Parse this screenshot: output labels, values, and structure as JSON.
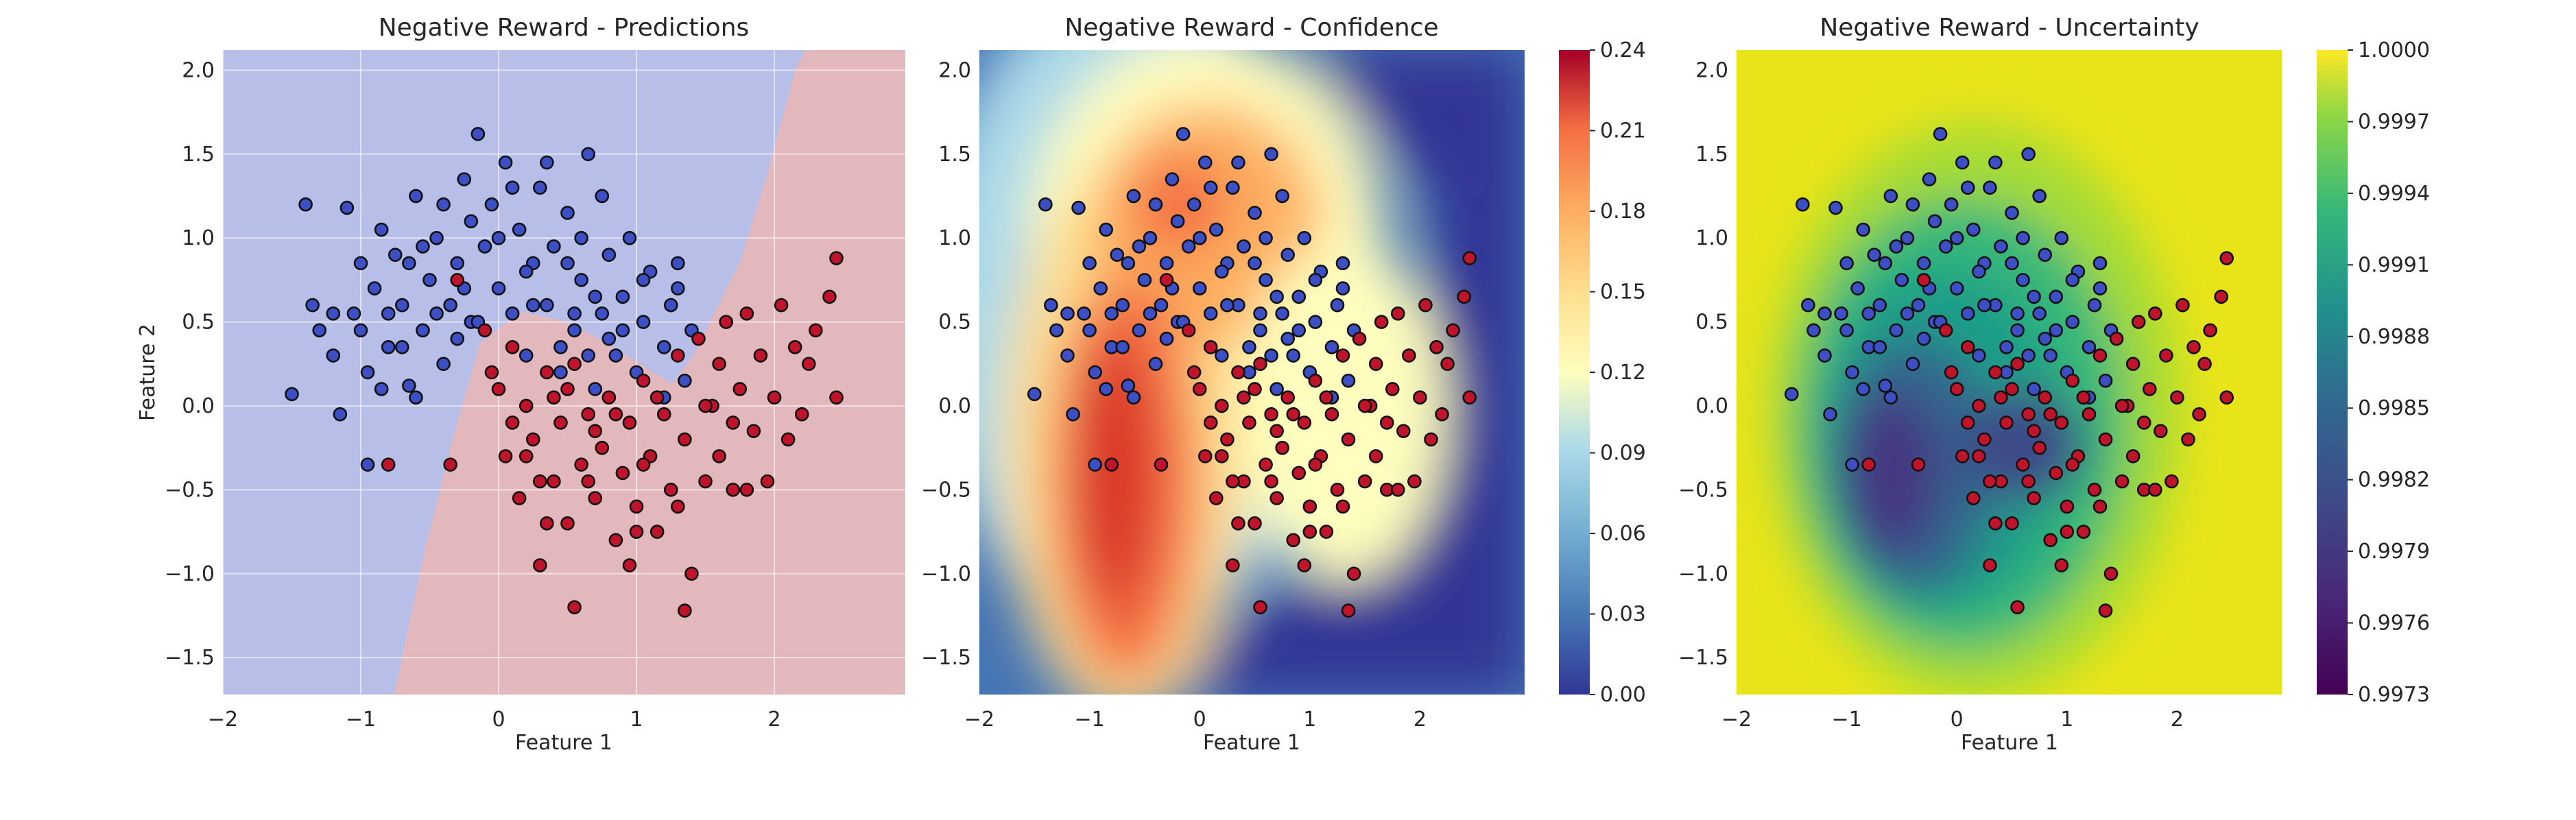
{
  "chart_data": [
    {
      "type": "scatter",
      "title": "Negative Reward - Predictions",
      "xlabel": "Feature 1",
      "ylabel": "Feature 2",
      "xlim": [
        -2.0,
        2.95
      ],
      "ylim": [
        -1.72,
        2.12
      ],
      "xticks": [
        "−2",
        "−1",
        "0",
        "1",
        "2"
      ],
      "yticks": [
        "−1.5",
        "−1.0",
        "−0.5",
        "0.0",
        "0.5",
        "1.0",
        "1.5",
        "2.0"
      ],
      "background": "decision regions: blue (class 0) upper-left, red (class 1) lower-right",
      "grid": true,
      "colors": {
        "class0": "#3d4fc4",
        "class1": "#c0142b",
        "region0": "#b7bfe8",
        "region1": "#e3b8bc"
      }
    },
    {
      "type": "heatmap",
      "title": "Negative Reward - Confidence",
      "xlabel": "Feature 1",
      "ylabel": "",
      "xlim": [
        -2.0,
        2.95
      ],
      "ylim": [
        -1.72,
        2.12
      ],
      "xticks": [
        "−2",
        "−1",
        "0",
        "1",
        "2"
      ],
      "yticks": [
        "−1.5",
        "−1.0",
        "−0.5",
        "0.0",
        "0.5",
        "1.0",
        "1.5",
        "2.0"
      ],
      "colormap": "RdYlBu_r",
      "colorbar_ticks": [
        "0.00",
        "0.03",
        "0.06",
        "0.09",
        "0.12",
        "0.15",
        "0.18",
        "0.21",
        "0.24"
      ],
      "colorbar_range": [
        0.0,
        0.24
      ]
    },
    {
      "type": "heatmap",
      "title": "Negative Reward - Uncertainty",
      "xlabel": "Feature 1",
      "ylabel": "",
      "xlim": [
        -2.0,
        2.95
      ],
      "ylim": [
        -1.72,
        2.12
      ],
      "xticks": [
        "−2",
        "−1",
        "0",
        "1",
        "2"
      ],
      "yticks": [
        "−1.5",
        "−1.0",
        "−0.5",
        "0.0",
        "0.5",
        "1.0",
        "1.5",
        "2.0"
      ],
      "colormap": "viridis",
      "colorbar_ticks": [
        "0.9973",
        "0.9976",
        "0.9979",
        "0.9982",
        "0.9985",
        "0.9988",
        "0.9991",
        "0.9994",
        "0.9997",
        "1.0000"
      ],
      "colorbar_range": [
        0.9973,
        1.0
      ]
    }
  ],
  "points": {
    "class0": [
      [
        -1.5,
        0.07
      ],
      [
        -1.4,
        1.2
      ],
      [
        -1.3,
        0.45
      ],
      [
        -1.2,
        0.3
      ],
      [
        -1.1,
        1.18
      ],
      [
        -1.05,
        0.55
      ],
      [
        -0.95,
        0.2
      ],
      [
        -0.9,
        0.7
      ],
      [
        -0.85,
        1.05
      ],
      [
        -0.8,
        0.35
      ],
      [
        -0.75,
        0.9
      ],
      [
        -0.7,
        0.6
      ],
      [
        -0.65,
        0.12
      ],
      [
        -0.6,
        1.25
      ],
      [
        -0.55,
        0.45
      ],
      [
        -0.5,
        0.75
      ],
      [
        -0.45,
        1.0
      ],
      [
        -0.4,
        0.25
      ],
      [
        -0.35,
        0.6
      ],
      [
        -0.3,
        0.85
      ],
      [
        -0.25,
        1.35
      ],
      [
        -0.2,
        0.5
      ],
      [
        -0.15,
        1.62
      ],
      [
        -0.1,
        0.95
      ],
      [
        -0.05,
        1.2
      ],
      [
        0.0,
        0.7
      ],
      [
        0.05,
        1.45
      ],
      [
        0.1,
        0.55
      ],
      [
        0.15,
        1.05
      ],
      [
        0.2,
        0.3
      ],
      [
        0.25,
        0.85
      ],
      [
        0.3,
        1.3
      ],
      [
        0.35,
        0.6
      ],
      [
        0.4,
        0.95
      ],
      [
        0.45,
        0.2
      ],
      [
        0.5,
        1.15
      ],
      [
        0.55,
        0.45
      ],
      [
        0.6,
        0.75
      ],
      [
        0.65,
        1.5
      ],
      [
        0.7,
        0.1
      ],
      [
        0.75,
        0.55
      ],
      [
        0.8,
        0.9
      ],
      [
        0.85,
        0.3
      ],
      [
        0.9,
        0.65
      ],
      [
        0.95,
        1.0
      ],
      [
        1.0,
        0.2
      ],
      [
        1.05,
        0.5
      ],
      [
        1.1,
        0.8
      ],
      [
        1.15,
        0.05
      ],
      [
        1.2,
        0.35
      ],
      [
        1.25,
        0.6
      ],
      [
        1.3,
        0.85
      ],
      [
        1.35,
        0.15
      ],
      [
        1.4,
        0.45
      ],
      [
        -1.35,
        0.6
      ],
      [
        -1.0,
        0.45
      ],
      [
        -0.7,
        0.35
      ],
      [
        -0.3,
        0.4
      ],
      [
        0.2,
        0.8
      ],
      [
        0.6,
        1.0
      ],
      [
        0.9,
        0.45
      ],
      [
        -0.55,
        0.95
      ],
      [
        -0.2,
        1.1
      ],
      [
        0.35,
        1.45
      ],
      [
        0.75,
        1.25
      ],
      [
        1.05,
        0.75
      ],
      [
        -1.15,
        -0.05
      ],
      [
        -0.95,
        -0.35
      ],
      [
        -0.6,
        0.05
      ],
      [
        -0.25,
        0.7
      ],
      [
        0.45,
        0.35
      ],
      [
        0.7,
        0.65
      ],
      [
        1.2,
        0.05
      ],
      [
        -0.8,
        0.55
      ],
      [
        -0.45,
        0.55
      ],
      [
        0.0,
        1.0
      ],
      [
        0.5,
        0.85
      ],
      [
        0.8,
        0.4
      ],
      [
        -1.0,
        0.85
      ],
      [
        -0.65,
        0.85
      ],
      [
        0.1,
        1.3
      ],
      [
        0.55,
        0.55
      ],
      [
        1.3,
        0.7
      ],
      [
        -0.4,
        1.2
      ],
      [
        0.25,
        0.6
      ],
      [
        0.65,
        0.3
      ],
      [
        -1.2,
        0.55
      ],
      [
        -0.85,
        0.1
      ],
      [
        -0.15,
        0.5
      ]
    ],
    "class1": [
      [
        -0.8,
        -0.35
      ],
      [
        -0.35,
        -0.35
      ],
      [
        -0.3,
        0.75
      ],
      [
        -0.1,
        0.45
      ],
      [
        0.0,
        0.1
      ],
      [
        0.05,
        -0.3
      ],
      [
        0.1,
        0.35
      ],
      [
        0.15,
        -0.55
      ],
      [
        0.2,
        0.0
      ],
      [
        0.25,
        -0.2
      ],
      [
        0.3,
        -0.95
      ],
      [
        0.35,
        0.2
      ],
      [
        0.4,
        -0.45
      ],
      [
        0.45,
        -0.1
      ],
      [
        0.5,
        -0.7
      ],
      [
        0.55,
        0.25
      ],
      [
        0.6,
        -0.35
      ],
      [
        0.65,
        -0.05
      ],
      [
        0.7,
        -0.55
      ],
      [
        0.75,
        -0.25
      ],
      [
        0.8,
        0.05
      ],
      [
        0.85,
        -0.8
      ],
      [
        0.9,
        -0.4
      ],
      [
        0.95,
        -0.1
      ],
      [
        1.0,
        -0.6
      ],
      [
        1.05,
        0.15
      ],
      [
        1.1,
        -0.3
      ],
      [
        1.15,
        -0.75
      ],
      [
        1.2,
        -0.05
      ],
      [
        1.25,
        -0.5
      ],
      [
        1.3,
        0.3
      ],
      [
        1.35,
        -0.2
      ],
      [
        1.4,
        -1.0
      ],
      [
        1.45,
        0.4
      ],
      [
        1.5,
        -0.45
      ],
      [
        1.55,
        0.0
      ],
      [
        1.6,
        -0.3
      ],
      [
        1.65,
        0.5
      ],
      [
        1.7,
        -0.5
      ],
      [
        1.75,
        0.1
      ],
      [
        1.8,
        0.55
      ],
      [
        1.85,
        -0.15
      ],
      [
        1.9,
        0.3
      ],
      [
        1.95,
        -0.45
      ],
      [
        2.0,
        0.05
      ],
      [
        2.05,
        0.6
      ],
      [
        2.1,
        -0.2
      ],
      [
        2.15,
        0.35
      ],
      [
        2.2,
        -0.05
      ],
      [
        2.3,
        0.45
      ],
      [
        2.4,
        0.65
      ],
      [
        2.45,
        0.88
      ],
      [
        2.45,
        0.05
      ],
      [
        0.55,
        -1.2
      ],
      [
        1.35,
        -1.22
      ],
      [
        1.0,
        -0.75
      ],
      [
        1.8,
        -0.5
      ],
      [
        0.1,
        -0.1
      ],
      [
        0.4,
        0.05
      ],
      [
        0.7,
        -0.15
      ],
      [
        1.3,
        -0.6
      ],
      [
        -0.05,
        0.2
      ],
      [
        0.3,
        -0.45
      ],
      [
        0.65,
        -0.45
      ],
      [
        1.05,
        -0.35
      ],
      [
        1.6,
        0.25
      ],
      [
        2.25,
        0.25
      ],
      [
        0.85,
        -0.05
      ],
      [
        1.15,
        0.05
      ],
      [
        0.2,
        -0.3
      ],
      [
        0.5,
        0.1
      ],
      [
        1.5,
        0.0
      ],
      [
        0.95,
        -0.95
      ],
      [
        1.7,
        -0.1
      ],
      [
        0.35,
        -0.7
      ]
    ]
  }
}
